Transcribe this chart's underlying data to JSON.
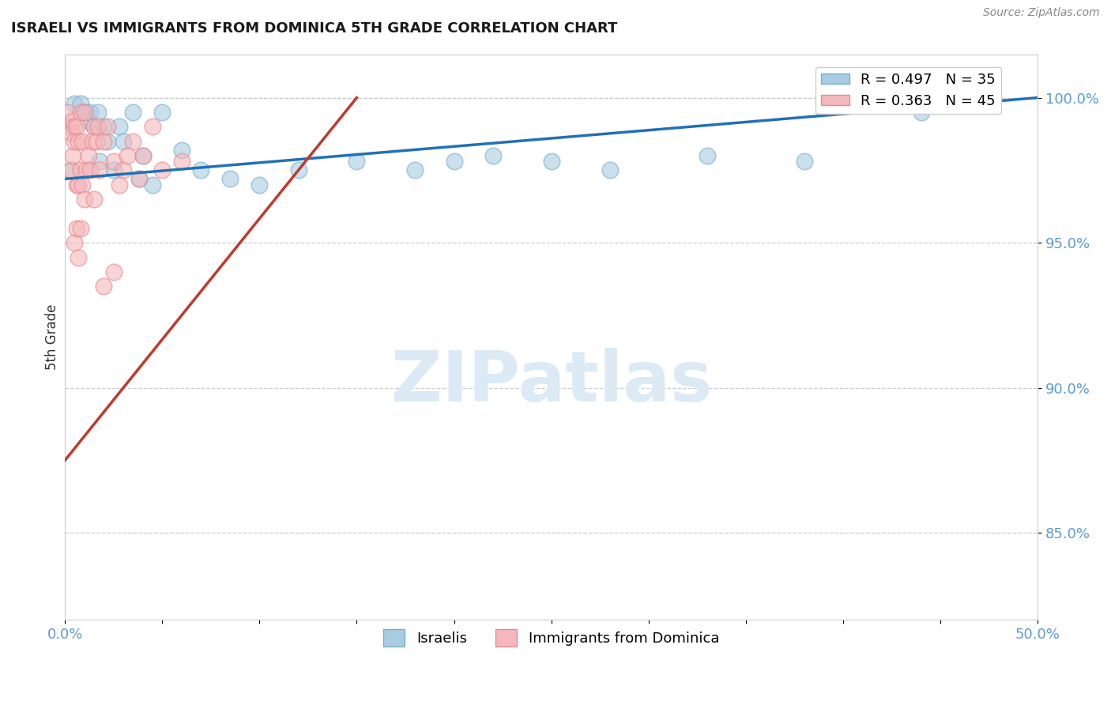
{
  "title": "ISRAELI VS IMMIGRANTS FROM DOMINICA 5TH GRADE CORRELATION CHART",
  "source": "Source: ZipAtlas.com",
  "ylabel": "5th Grade",
  "xlabel": "",
  "xlim": [
    0.0,
    50.0
  ],
  "ylim": [
    82.0,
    101.5
  ],
  "yticks": [
    85.0,
    90.0,
    95.0,
    100.0
  ],
  "ytick_labels": [
    "85.0%",
    "90.0%",
    "95.0%",
    "100.0%"
  ],
  "xtick_positions": [
    0.0,
    5.0,
    10.0,
    15.0,
    20.0,
    25.0,
    30.0,
    35.0,
    40.0,
    45.0,
    50.0
  ],
  "xtick_labels": [
    "0.0%",
    "",
    "",
    "",
    "",
    "",
    "",
    "",
    "",
    "",
    "50.0%"
  ],
  "legend_text_blue": "R = 0.497   N = 35",
  "legend_text_pink": "R = 0.363   N = 45",
  "legend_label_blue": "Israelis",
  "legend_label_pink": "Immigrants from Dominica",
  "blue_color": "#a8cce0",
  "pink_color": "#f4b8bc",
  "blue_edge_color": "#7ab0d0",
  "pink_edge_color": "#e88a90",
  "blue_line_color": "#2171b5",
  "pink_line_color": "#c0392b",
  "watermark_zip_color": "#b8cfe0",
  "watermark_atlas_color": "#c8dde8",
  "blue_scatter_x": [
    0.3,
    0.5,
    0.8,
    1.0,
    1.2,
    1.3,
    1.5,
    1.7,
    1.8,
    2.0,
    2.2,
    2.5,
    2.8,
    3.0,
    3.5,
    3.8,
    4.0,
    4.5,
    5.0,
    6.0,
    7.0,
    8.5,
    10.0,
    12.0,
    15.0,
    18.0,
    20.0,
    22.0,
    25.0,
    28.0,
    33.0,
    38.0,
    41.0,
    44.0,
    46.0
  ],
  "blue_scatter_y": [
    97.5,
    99.8,
    99.8,
    99.5,
    99.2,
    99.5,
    99.0,
    99.5,
    97.8,
    99.0,
    98.5,
    97.5,
    99.0,
    98.5,
    99.5,
    97.2,
    98.0,
    97.0,
    99.5,
    98.2,
    97.5,
    97.2,
    97.0,
    97.5,
    97.8,
    97.5,
    97.8,
    98.0,
    97.8,
    97.5,
    98.0,
    97.8,
    99.8,
    99.5,
    99.8
  ],
  "pink_scatter_x": [
    0.1,
    0.2,
    0.3,
    0.3,
    0.4,
    0.4,
    0.5,
    0.5,
    0.6,
    0.6,
    0.7,
    0.7,
    0.8,
    0.8,
    0.9,
    0.9,
    1.0,
    1.0,
    1.1,
    1.2,
    1.3,
    1.4,
    1.5,
    1.6,
    1.7,
    1.8,
    2.0,
    2.2,
    2.5,
    3.0,
    3.5,
    4.0,
    4.5,
    2.8,
    3.2,
    1.5,
    0.5,
    0.6,
    0.7,
    0.8,
    5.0,
    6.0,
    2.0,
    2.5,
    3.8
  ],
  "pink_scatter_y": [
    99.5,
    99.0,
    98.8,
    97.5,
    99.2,
    98.0,
    99.0,
    98.5,
    99.0,
    97.0,
    98.5,
    97.0,
    99.5,
    97.5,
    98.5,
    97.0,
    99.5,
    96.5,
    97.5,
    98.0,
    97.5,
    98.5,
    99.0,
    98.5,
    99.0,
    97.5,
    98.5,
    99.0,
    97.8,
    97.5,
    98.5,
    98.0,
    99.0,
    97.0,
    98.0,
    96.5,
    95.0,
    95.5,
    94.5,
    95.5,
    97.5,
    97.8,
    93.5,
    94.0,
    97.2
  ],
  "blue_line_x": [
    0.0,
    50.0
  ],
  "blue_line_y": [
    97.2,
    100.0
  ],
  "pink_line_x": [
    0.0,
    15.0
  ],
  "pink_line_y": [
    87.5,
    100.0
  ]
}
